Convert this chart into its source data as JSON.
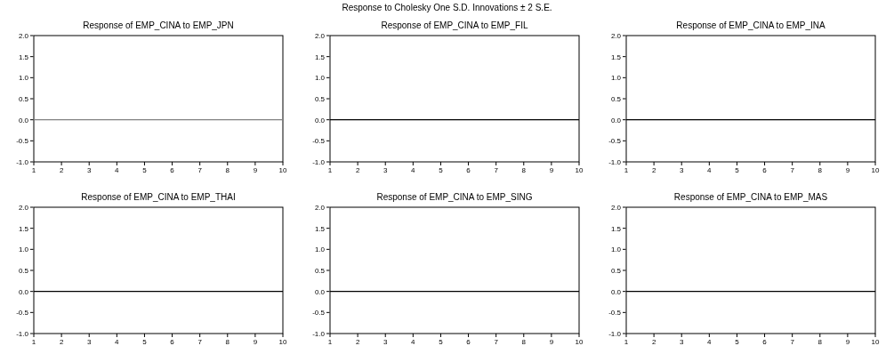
{
  "chart_data": [
    {
      "type": "line",
      "title": "Response of EMP_CINA to EMP_JPN",
      "annotations": [
        "Response to Cholesky One S.D. Innovations ± 2 S.E."
      ],
      "categories": [
        "1",
        "2",
        "3",
        "4",
        "5",
        "6",
        "7",
        "8",
        "9",
        "10"
      ],
      "series": [
        {
          "color": "#808080",
          "values": [
            0,
            0,
            0,
            0,
            0,
            0,
            0,
            0,
            0,
            0
          ]
        }
      ],
      "ylim": [
        -1,
        2
      ],
      "yticks": [
        {
          "value": -1,
          "label": "-1.0"
        },
        {
          "value": -0.5,
          "label": "-0.5"
        },
        {
          "value": 0,
          "label": "0.0"
        },
        {
          "value": 0.5,
          "label": "0.5"
        },
        {
          "value": 1,
          "label": "1.0"
        },
        {
          "value": 1.5,
          "label": "1.5"
        },
        {
          "value": 2,
          "label": "2.0"
        }
      ]
    },
    {
      "type": "line",
      "title": "Response of EMP_CINA to EMP_FIL",
      "categories": [
        "1",
        "2",
        "3",
        "4",
        "5",
        "6",
        "7",
        "8",
        "9",
        "10"
      ],
      "series": [
        {
          "color": "#000000",
          "values": [
            0,
            0,
            0,
            0,
            0,
            0,
            0,
            0,
            0,
            0
          ]
        }
      ],
      "ylim": [
        -1,
        2
      ],
      "yticks": [
        {
          "value": -1,
          "label": "-1.0"
        },
        {
          "value": -0.5,
          "label": "-0.5"
        },
        {
          "value": 0,
          "label": "0.0"
        },
        {
          "value": 0.5,
          "label": "0.5"
        },
        {
          "value": 1,
          "label": "1.0"
        },
        {
          "value": 1.5,
          "label": "1.5"
        },
        {
          "value": 2,
          "label": "2.0"
        }
      ]
    },
    {
      "type": "line",
      "title": "Response of EMP_CINA to EMP_INA",
      "categories": [
        "1",
        "2",
        "3",
        "4",
        "5",
        "6",
        "7",
        "8",
        "9",
        "10"
      ],
      "series": [
        {
          "color": "#000000",
          "values": [
            0,
            0,
            0,
            0,
            0,
            0,
            0,
            0,
            0,
            0
          ]
        }
      ],
      "ylim": [
        -1,
        2
      ],
      "yticks": [
        {
          "value": -1,
          "label": "-1.0"
        },
        {
          "value": -0.5,
          "label": "-0.5"
        },
        {
          "value": 0,
          "label": "0.0"
        },
        {
          "value": 0.5,
          "label": "0.5"
        },
        {
          "value": 1,
          "label": "1.0"
        },
        {
          "value": 1.5,
          "label": "1.5"
        },
        {
          "value": 2,
          "label": "2.0"
        }
      ]
    },
    {
      "type": "line",
      "title": "Response of EMP_CINA to EMP_THAI",
      "categories": [
        "1",
        "2",
        "3",
        "4",
        "5",
        "6",
        "7",
        "8",
        "9",
        "10"
      ],
      "series": [
        {
          "color": "#000000",
          "values": [
            0,
            0,
            0,
            0,
            0,
            0,
            0,
            0,
            0,
            0
          ]
        }
      ],
      "ylim": [
        -1,
        2
      ],
      "yticks": [
        {
          "value": -1,
          "label": "-1.0"
        },
        {
          "value": -0.5,
          "label": "-0.5"
        },
        {
          "value": 0,
          "label": "0.0"
        },
        {
          "value": 0.5,
          "label": "0.5"
        },
        {
          "value": 1,
          "label": "1.0"
        },
        {
          "value": 1.5,
          "label": "1.5"
        },
        {
          "value": 2,
          "label": "2.0"
        }
      ]
    },
    {
      "type": "line",
      "title": "Response of EMP_CINA to EMP_SING",
      "categories": [
        "1",
        "2",
        "3",
        "4",
        "5",
        "6",
        "7",
        "8",
        "9",
        "10"
      ],
      "series": [
        {
          "color": "#000000",
          "values": [
            0,
            0,
            0,
            0,
            0,
            0,
            0,
            0,
            0,
            0
          ]
        }
      ],
      "ylim": [
        -1,
        2
      ],
      "yticks": [
        {
          "value": -1,
          "label": "-1.0"
        },
        {
          "value": -0.5,
          "label": "-0.5"
        },
        {
          "value": 0,
          "label": "0.0"
        },
        {
          "value": 0.5,
          "label": "0.5"
        },
        {
          "value": 1,
          "label": "1.0"
        },
        {
          "value": 1.5,
          "label": "1.5"
        },
        {
          "value": 2,
          "label": "2.0"
        }
      ]
    },
    {
      "type": "line",
      "title": "Response of EMP_CINA to EMP_MAS",
      "categories": [
        "1",
        "2",
        "3",
        "4",
        "5",
        "6",
        "7",
        "8",
        "9",
        "10"
      ],
      "series": [
        {
          "color": "#000000",
          "values": [
            0,
            0,
            0,
            0,
            0,
            0,
            0,
            0,
            0,
            0
          ]
        }
      ],
      "ylim": [
        -1,
        2
      ],
      "yticks": [
        {
          "value": -1,
          "label": "-1.0"
        },
        {
          "value": -0.5,
          "label": "-0.5"
        },
        {
          "value": 0,
          "label": "0.0"
        },
        {
          "value": 0.5,
          "label": "0.5"
        },
        {
          "value": 1,
          "label": "1.0"
        },
        {
          "value": 1.5,
          "label": "1.5"
        },
        {
          "value": 2,
          "label": "2.0"
        }
      ]
    }
  ]
}
